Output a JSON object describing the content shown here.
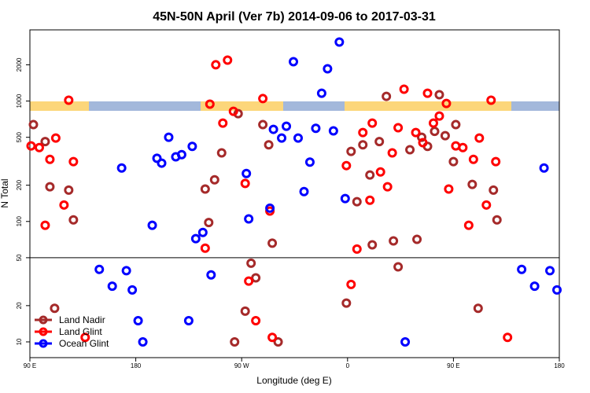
{
  "chart_data": {
    "type": "scatter",
    "title": "45N-50N April (Ver 7b)   2014-09-06 to 2017-03-31",
    "xlabel": "Longitude (deg E)",
    "ylabel": "N Total",
    "xlim": [
      90,
      540
    ],
    "ylim": [
      7.4,
      3900
    ],
    "log_y": true,
    "xticks": [
      {
        "value": 90,
        "label": "90 E"
      },
      180,
      {
        "value": 270,
        "label": "90 W"
      },
      {
        "value": 360,
        "label": "0"
      },
      {
        "value": 450,
        "label": "90 E"
      },
      {
        "value": 540,
        "label": "180"
      }
    ],
    "yticks": [
      10,
      20,
      50,
      100,
      200,
      500,
      1000,
      2000
    ],
    "reference_line": 50,
    "legend": "lower left",
    "series": [
      {
        "name": "Land Nadir",
        "color": "#a52a2a",
        "x": [
          93,
          103,
          107,
          123,
          127,
          111,
          253,
          247,
          239,
          242,
          267,
          288,
          293,
          296,
          278,
          282,
          273,
          264,
          301,
          393,
          363,
          373,
          387,
          379,
          399,
          381,
          403,
          419,
          413,
          423,
          428,
          434,
          438,
          443,
          450,
          452,
          466,
          471,
          484,
          487,
          359,
          368
        ],
        "values": [
          637,
          461,
          194,
          182,
          103,
          19,
          371,
          222,
          186,
          98,
          786,
          637,
          433,
          66,
          45,
          34,
          18,
          10,
          10,
          1094,
          382,
          433,
          461,
          243,
          69,
          64,
          42,
          71,
          394,
          500,
          420,
          560,
          1128,
          516,
          314,
          637,
          203,
          19,
          182,
          103,
          21,
          146
        ]
      },
      {
        "name": "Land Glint",
        "color": "#ff0000",
        "x": [
          91,
          98,
          112,
          107,
          103,
          119,
          127,
          123,
          137,
          248,
          258,
          243,
          254,
          263,
          273,
          276,
          282,
          294,
          288,
          296,
          239,
          359,
          363,
          368,
          373,
          381,
          379,
          388,
          394,
          398,
          403,
          408,
          418,
          424,
          428,
          433,
          438,
          444,
          446,
          452,
          458,
          463,
          467,
          472,
          478,
          482,
          486,
          496
        ],
        "values": [
          424,
          411,
          493,
          328,
          93,
          137,
          314,
          1016,
          10.9,
          2000,
          2188,
          942,
          656,
          822,
          207,
          32,
          15,
          122,
          1048,
          10.9,
          60,
          291,
          30,
          59,
          548,
          656,
          150,
          258,
          194,
          371,
          600,
          1253,
          548,
          451,
          1161,
          656,
          751,
          955,
          186,
          424,
          411,
          93,
          328,
          493,
          137,
          1016,
          314,
          10.9
        ]
      },
      {
        "name": "Ocean Glint",
        "color": "#0000ff",
        "x": [
          149,
          160,
          168,
          172,
          177,
          182,
          186,
          194,
          198,
          202,
          208,
          214,
          219,
          225,
          228,
          231,
          237,
          244,
          274,
          276,
          294,
          297,
          304,
          308,
          314,
          318,
          323,
          328,
          333,
          338,
          343,
          348,
          353,
          358,
          409,
          508,
          519,
          527,
          532,
          538
        ],
        "values": [
          40,
          29,
          278,
          39,
          27,
          15,
          10,
          93,
          335,
          305,
          500,
          344,
          359,
          15,
          420,
          72,
          81,
          36,
          250,
          105,
          129,
          582,
          493,
          618,
          2123,
          493,
          177,
          311,
          594,
          1161,
          1853,
          565,
          3092,
          155,
          10,
          40,
          29,
          278,
          39,
          27
        ]
      }
    ]
  }
}
